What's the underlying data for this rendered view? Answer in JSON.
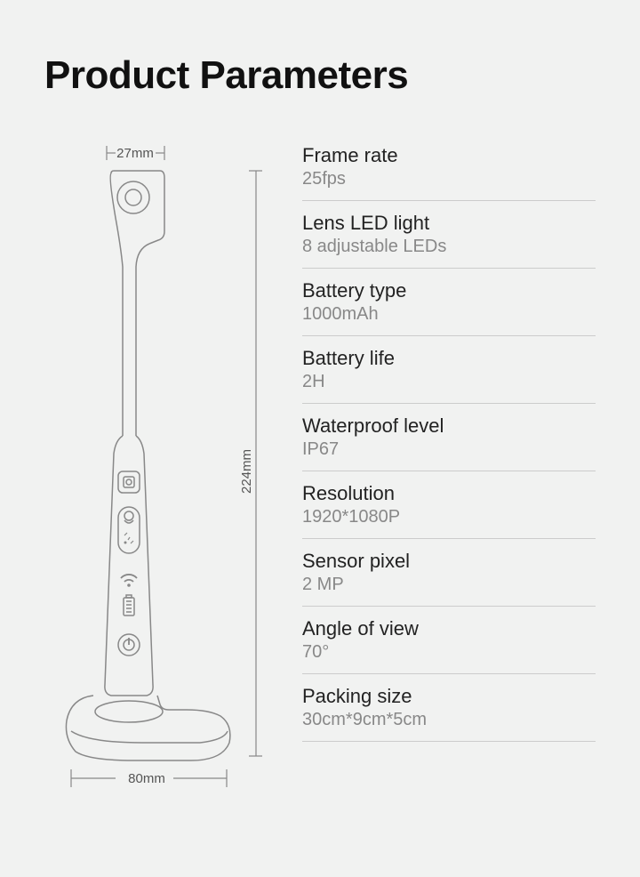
{
  "title": "Product Parameters",
  "diagram": {
    "top_width_label": "27mm",
    "height_label": "224mm",
    "base_width_label": "80mm",
    "stroke_color": "#888888",
    "stroke_width": 1.5,
    "label_fontsize": 15,
    "label_color": "#555555"
  },
  "specs": [
    {
      "label": "Frame rate",
      "value": "25fps"
    },
    {
      "label": "Lens LED light",
      "value": "8 adjustable LEDs"
    },
    {
      "label": "Battery type",
      "value": "1000mAh"
    },
    {
      "label": "Battery life",
      "value": "2H"
    },
    {
      "label": "Waterproof level",
      "value": "IP67"
    },
    {
      "label": "Resolution",
      "value": "1920*1080P"
    },
    {
      "label": "Sensor pixel",
      "value": "2 MP"
    },
    {
      "label": "Angle of view",
      "value": "70°"
    },
    {
      "label": "Packing size",
      "value": "30cm*9cm*5cm"
    }
  ],
  "style": {
    "background_color": "#f1f2f1",
    "title_color": "#111111",
    "title_fontsize": 44,
    "label_color": "#222222",
    "label_fontsize": 22,
    "value_color": "#888888",
    "value_fontsize": 20,
    "divider_color": "#cccccc"
  }
}
